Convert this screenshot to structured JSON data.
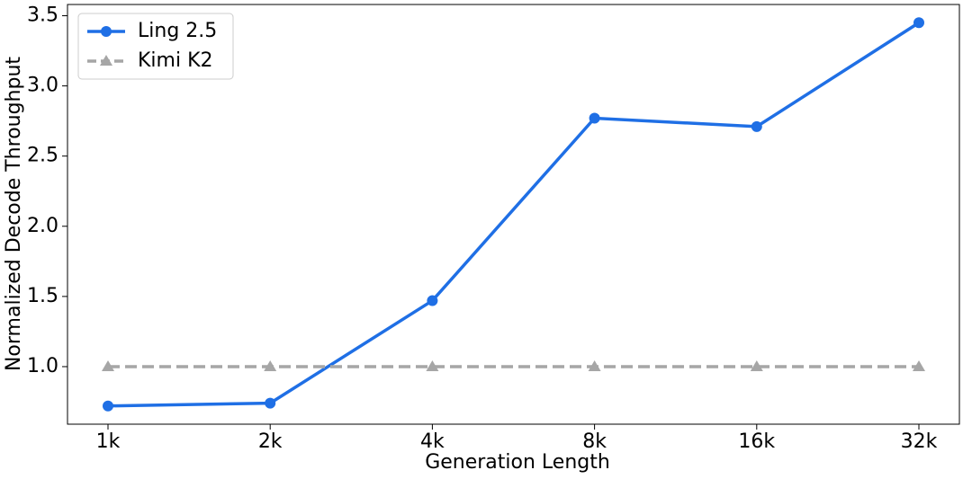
{
  "chart_data": {
    "type": "line",
    "x_label": "Generation Length",
    "y_label": "Normalized Decode Throughput",
    "categories": [
      "1k",
      "2k",
      "4k",
      "8k",
      "16k",
      "32k"
    ],
    "series": [
      {
        "name": "Ling 2.5",
        "color": "#1f6fe5",
        "linestyle": "solid",
        "marker": "circle",
        "values": [
          0.72,
          0.74,
          1.47,
          2.77,
          2.71,
          3.45
        ]
      },
      {
        "name": "Kimi K2",
        "color": "#a6a6a6",
        "linestyle": "dashed",
        "marker": "triangle",
        "values": [
          1.0,
          1.0,
          1.0,
          1.0,
          1.0,
          1.0
        ]
      }
    ],
    "ylim": [
      0.59,
      3.58
    ],
    "yticks": [
      {
        "value": 1,
        "label": "1.0"
      },
      1.5,
      {
        "value": 2,
        "label": "2.0"
      },
      2.5,
      {
        "value": 3,
        "label": "3.0"
      },
      3.5
    ],
    "grid": false,
    "legend": "upper left"
  }
}
